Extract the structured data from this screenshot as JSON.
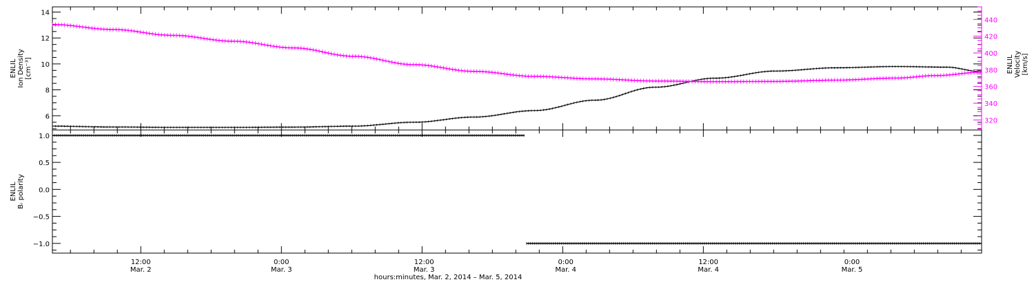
{
  "chart_data": [
    {
      "type": "line",
      "panel": "top",
      "ylabel": [
        "ENLIL",
        "Ion Density",
        "[cm⁻³]"
      ],
      "ylabel_right": [
        "ENLIL",
        "Velocity",
        "[km/s]"
      ],
      "ylim": [
        4.9,
        14.4
      ],
      "ylim_right": [
        308,
        455
      ],
      "yticks": [
        6,
        8,
        10,
        12,
        14
      ],
      "yticks_right": [
        320,
        340,
        360,
        380,
        400,
        420,
        440
      ],
      "xlim_hours": [
        0,
        92.5
      ],
      "series": [
        {
          "axis": "left",
          "color": "#000000",
          "points": [
            [
              0,
              5.2
            ],
            [
              6,
              5.13
            ],
            [
              12,
              5.1
            ],
            [
              18,
              5.1
            ],
            [
              24,
              5.12
            ],
            [
              30,
              5.2
            ],
            [
              36,
              5.5
            ],
            [
              42,
              5.9
            ],
            [
              48,
              6.4
            ],
            [
              54,
              7.2
            ],
            [
              60,
              8.2
            ],
            [
              66,
              8.9
            ],
            [
              72,
              9.45
            ],
            [
              78,
              9.7
            ],
            [
              84,
              9.8
            ],
            [
              89,
              9.75
            ],
            [
              92.5,
              9.4
            ]
          ]
        },
        {
          "axis": "right",
          "color": "#ff00ff",
          "points": [
            [
              0,
              434
            ],
            [
              6,
              428
            ],
            [
              12,
              421
            ],
            [
              18,
              414
            ],
            [
              24,
              406
            ],
            [
              30,
              396
            ],
            [
              36,
              386
            ],
            [
              42,
              378
            ],
            [
              48,
              372
            ],
            [
              54,
              369
            ],
            [
              60,
              366.5
            ],
            [
              66,
              365.7
            ],
            [
              72,
              366
            ],
            [
              78,
              367.5
            ],
            [
              84,
              370
            ],
            [
              88,
              373
            ],
            [
              92.5,
              377
            ]
          ]
        }
      ]
    },
    {
      "type": "line",
      "panel": "bottom",
      "ylabel": [
        "ENLIL",
        "Bᵣ polarity"
      ],
      "ylim": [
        -1.18,
        1.1
      ],
      "yticks": [
        -1.0,
        -0.5,
        0.0,
        0.5,
        1.0
      ],
      "ytick_labels": [
        "−1.0",
        "−0.5",
        "0.0",
        "0.5",
        "1.0"
      ],
      "xlim_hours": [
        0,
        92.5
      ],
      "series": [
        {
          "color": "#000000",
          "points": [
            [
              0,
              1.0
            ],
            [
              47.0,
              1.0
            ]
          ]
        },
        {
          "color": "#000000",
          "points": [
            [
              47.2,
              -1.0
            ],
            [
              92.5,
              -1.0
            ]
          ]
        }
      ]
    }
  ],
  "x_axis": {
    "ticks": [
      {
        "hours": 8.8,
        "time": "12:00",
        "date": "Mar. 2"
      },
      {
        "hours": 22.8,
        "time": "0:00",
        "date": "Mar. 3"
      },
      {
        "hours": 37.0,
        "time": "12:00",
        "date": "Mar. 3"
      },
      {
        "hours": 51.1,
        "time": "0:00",
        "date": "Mar. 4"
      },
      {
        "hours": 65.3,
        "time": "12:00",
        "date": "Mar. 4"
      },
      {
        "hours": 79.6,
        "time": "0:00",
        "date": "Mar. 5"
      }
    ],
    "title": "hours:minutes, Mar.  2, 2014 – Mar.  5, 2014"
  },
  "colors": {
    "velocity": "#ff00ff",
    "density": "#000000",
    "axes": "#000000"
  }
}
